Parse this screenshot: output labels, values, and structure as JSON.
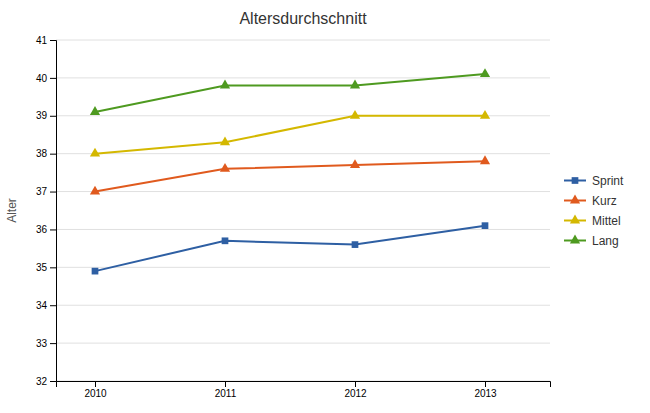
{
  "chart_data": {
    "type": "line",
    "title": "Altersdurchschnitt",
    "ylabel": "Alter",
    "x": [
      2010,
      2011,
      2012,
      2013
    ],
    "series": [
      {
        "name": "Sprint",
        "color": "#2e5fa3",
        "marker": "square",
        "values": [
          34.9,
          35.7,
          35.6,
          36.1
        ]
      },
      {
        "name": "Kurz",
        "color": "#e05a1e",
        "marker": "triangle",
        "values": [
          37.0,
          37.6,
          37.7,
          37.8
        ]
      },
      {
        "name": "Mittel",
        "color": "#d4b800",
        "marker": "triangle",
        "values": [
          38.0,
          38.3,
          39.0,
          39.0
        ]
      },
      {
        "name": "Lang",
        "color": "#4e9a20",
        "marker": "triangle",
        "values": [
          39.1,
          39.8,
          39.8,
          40.1
        ]
      }
    ],
    "xlim": [
      2009.7,
      2013.5
    ],
    "xticks": [
      2010,
      2011,
      2012,
      2013
    ],
    "ylim": [
      32,
      41
    ],
    "yticks": [
      32,
      33,
      34,
      35,
      36,
      37,
      38,
      39,
      40,
      41
    ],
    "grid": true,
    "legend": "right"
  }
}
